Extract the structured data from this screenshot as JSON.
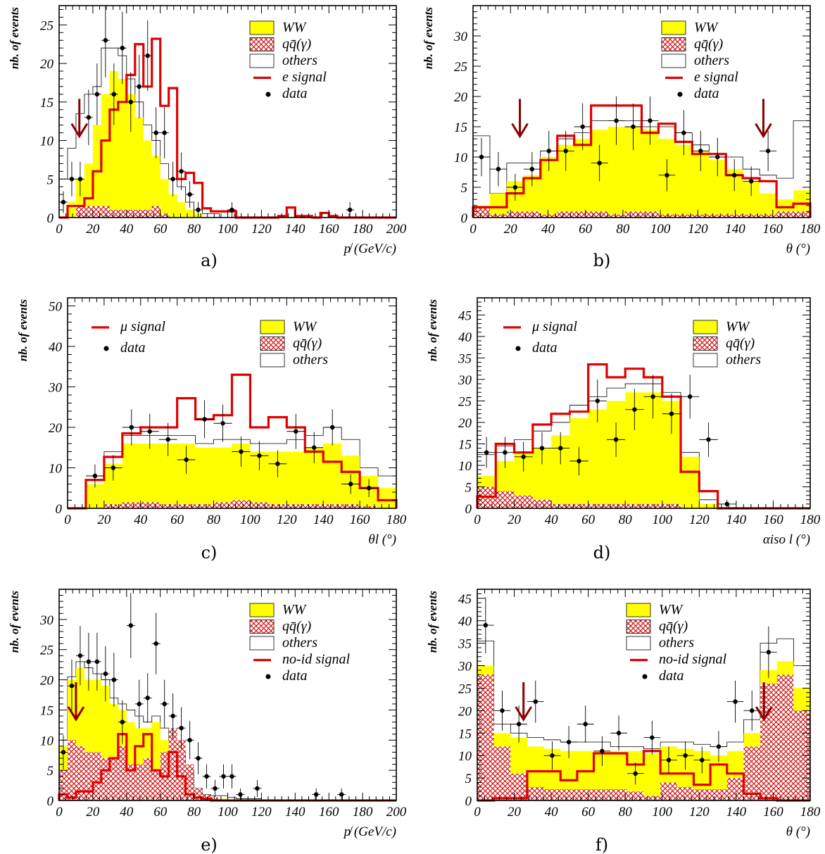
{
  "colors": {
    "ww": "#ffff00",
    "qq": "#cc0000",
    "others": "#ffffff",
    "signal": "#e00000",
    "arrow": "#8b0000",
    "data": "#000000"
  },
  "legend_labels": {
    "ww": "WW",
    "qq": "qq̄(γ)",
    "others": "others",
    "data": "data"
  },
  "ylabel": "nb. of events",
  "chart_data": [
    {
      "id": "a",
      "type": "bar",
      "panel_label": "a)",
      "xlabel": "p̸ (GeV/c)",
      "ylabel": "nb. of events",
      "xlim": [
        0,
        200
      ],
      "ylim": [
        0,
        27.5
      ],
      "xticks": [
        0,
        20,
        40,
        60,
        80,
        100,
        120,
        140,
        160,
        180,
        200
      ],
      "yticks": [
        0,
        5,
        10,
        15,
        20,
        25
      ],
      "signal_label": "e signal",
      "legend_pos": "top-right",
      "legend_order": [
        "ww",
        "qq",
        "others",
        "signal",
        "data"
      ],
      "binwidth": 5,
      "ww": [
        0,
        2,
        5,
        7,
        12,
        16,
        19,
        18,
        16,
        13,
        10,
        8,
        5,
        3,
        2,
        1,
        0.5,
        0,
        0,
        0,
        0,
        0,
        0,
        0,
        0,
        0,
        0,
        0,
        0,
        0,
        0,
        0,
        0,
        0,
        0,
        0,
        0,
        0,
        0,
        0
      ],
      "qq": [
        0,
        0,
        1.5,
        1.5,
        1.5,
        1.5,
        1,
        1,
        1,
        1,
        1,
        1.5,
        0.5,
        0,
        0,
        0,
        0,
        0,
        0,
        0,
        0,
        0,
        0,
        0,
        0,
        0,
        0,
        0,
        0,
        0,
        0,
        0,
        0,
        0,
        0,
        0,
        0,
        0,
        0,
        0
      ],
      "total": [
        5,
        9,
        13.5,
        16,
        17,
        22,
        22,
        21,
        18,
        15,
        12,
        10,
        7,
        5,
        4,
        2,
        1,
        0.5,
        0.5,
        0,
        0,
        0,
        0,
        0,
        0,
        0,
        0,
        0,
        0,
        0,
        0,
        0,
        0,
        0,
        0,
        0,
        0,
        0,
        0,
        0
      ],
      "signal": [
        0,
        1.5,
        1.5,
        2.5,
        6,
        10,
        14,
        15,
        18.5,
        22.5,
        17,
        23.2,
        14.5,
        16.8,
        5,
        5.8,
        4.5,
        1.2,
        0.8,
        0.8,
        0.8,
        0,
        0,
        0,
        0,
        0,
        0.2,
        1.3,
        0.2,
        0.2,
        0,
        0.6,
        0.2,
        0,
        0,
        0,
        0,
        0,
        0,
        0
      ],
      "data": [
        [
          2.5,
          2
        ],
        [
          7.5,
          5
        ],
        [
          12.5,
          5
        ],
        [
          17.5,
          13
        ],
        [
          22.5,
          16
        ],
        [
          27.5,
          23
        ],
        [
          32.5,
          16
        ],
        [
          37.5,
          22
        ],
        [
          42.5,
          15
        ],
        [
          47.5,
          17
        ],
        [
          52.5,
          21
        ],
        [
          57.5,
          11
        ],
        [
          62.5,
          11
        ],
        [
          67.5,
          5
        ],
        [
          72.5,
          6
        ],
        [
          77.5,
          3
        ],
        [
          82.5,
          1
        ],
        [
          102.5,
          1
        ],
        [
          172.5,
          1
        ]
      ],
      "arrows": [
        12
      ]
    },
    {
      "id": "b",
      "type": "bar",
      "panel_label": "b)",
      "xlabel": "θ (°)",
      "ylabel": "nb. of events",
      "xlim": [
        0,
        180
      ],
      "ylim": [
        0,
        35
      ],
      "xticks": [
        0,
        20,
        40,
        60,
        80,
        100,
        120,
        140,
        160,
        180
      ],
      "yticks": [
        0,
        5,
        10,
        15,
        20,
        25,
        30
      ],
      "signal_label": "e signal",
      "legend_pos": "top-right",
      "legend_order": [
        "ww",
        "qq",
        "others",
        "signal",
        "data"
      ],
      "binwidth": 9,
      "ww": [
        2,
        4,
        6,
        7,
        10,
        12,
        13,
        14.5,
        15,
        15,
        14.5,
        13,
        12,
        11,
        9.5,
        8,
        6,
        4,
        3,
        4.5
      ],
      "qq": [
        1.5,
        0.5,
        1,
        1,
        0.5,
        1,
        1,
        1,
        0.5,
        1,
        1,
        0.5,
        0.5,
        0.5,
        0.5,
        0.5,
        0.5,
        0.5,
        1,
        1
      ],
      "total": [
        13.5,
        4,
        9,
        9,
        11,
        13,
        14,
        16,
        16,
        16,
        15,
        15,
        14,
        12,
        10.5,
        10,
        8,
        7,
        6.5,
        16
      ],
      "signal": [
        1.7,
        1.7,
        4,
        6.5,
        9.5,
        13.5,
        12,
        18.5,
        18.5,
        18.5,
        14,
        15.5,
        12.5,
        10.5,
        10.5,
        7,
        6.5,
        6,
        1.7,
        2.3
      ],
      "data": [
        [
          4.5,
          10
        ],
        [
          13.5,
          8
        ],
        [
          22.5,
          5
        ],
        [
          31.5,
          8
        ],
        [
          40.5,
          11
        ],
        [
          49.5,
          11
        ],
        [
          58.5,
          15
        ],
        [
          67.5,
          9
        ],
        [
          76.5,
          16
        ],
        [
          85.5,
          15
        ],
        [
          94.5,
          16
        ],
        [
          103.5,
          7
        ],
        [
          112.5,
          14
        ],
        [
          121.5,
          11
        ],
        [
          130.5,
          10
        ],
        [
          139.5,
          7
        ],
        [
          148.5,
          6
        ],
        [
          157.5,
          11
        ]
      ],
      "arrows": [
        25,
        155
      ]
    },
    {
      "id": "c",
      "type": "bar",
      "panel_label": "c)",
      "xlabel": "θl (°)",
      "ylabel": "nb. of events",
      "xlim": [
        0,
        180
      ],
      "ylim": [
        0,
        52
      ],
      "xticks": [
        0,
        20,
        40,
        60,
        80,
        100,
        120,
        140,
        160,
        180
      ],
      "yticks": [
        0,
        10,
        20,
        30,
        40,
        50
      ],
      "signal_label": "μ signal",
      "legend_pos": "top-right",
      "legend_order": [
        "ww",
        "qq",
        "others"
      ],
      "legend_left_order": [
        "signal",
        "data"
      ],
      "binwidth": 10,
      "ww": [
        0,
        6,
        11,
        16,
        16,
        16,
        16,
        15,
        15,
        16,
        14,
        14,
        14,
        15,
        16,
        13,
        8,
        5
      ],
      "qq": [
        0,
        0,
        1,
        1.5,
        1.5,
        1,
        1,
        1,
        1.5,
        2,
        1.5,
        1,
        1,
        1,
        1,
        1,
        0.5,
        0
      ],
      "total": [
        0,
        7,
        14,
        18,
        18,
        18,
        18,
        16,
        17,
        17,
        16,
        16,
        17,
        18,
        20,
        17,
        10,
        8
      ],
      "signal": [
        0,
        7,
        12.7,
        18.5,
        20,
        20,
        27.2,
        22,
        23,
        33,
        20,
        22.5,
        20,
        14,
        11.5,
        9,
        5,
        2
      ],
      "data": [
        [
          15,
          8
        ],
        [
          25,
          10
        ],
        [
          35,
          20
        ],
        [
          45,
          19
        ],
        [
          55,
          17
        ],
        [
          65,
          12
        ],
        [
          75,
          22
        ],
        [
          85,
          21
        ],
        [
          95,
          14
        ],
        [
          105,
          13
        ],
        [
          115,
          11
        ],
        [
          125,
          19
        ],
        [
          135,
          15
        ],
        [
          145,
          20
        ],
        [
          155,
          6
        ],
        [
          165,
          5
        ]
      ],
      "arrows": []
    },
    {
      "id": "d",
      "type": "bar",
      "panel_label": "d)",
      "xlabel": "αiso l (°)",
      "ylabel": "nb. of events",
      "xlim": [
        0,
        180
      ],
      "ylim": [
        0,
        49
      ],
      "xticks": [
        0,
        20,
        40,
        60,
        80,
        100,
        120,
        140,
        160,
        180
      ],
      "yticks": [
        0,
        5,
        10,
        15,
        20,
        25,
        30,
        35,
        40,
        45
      ],
      "signal_label": "μ signal",
      "legend_pos": "top-right",
      "legend_order": [
        "ww",
        "qq",
        "others"
      ],
      "legend_left_order": [
        "signal",
        "data"
      ],
      "binwidth": 10,
      "ww": [
        7.5,
        11,
        13,
        14,
        17,
        21,
        23,
        25,
        27,
        27,
        25,
        12,
        1,
        0,
        0,
        0,
        0,
        0
      ],
      "qq": [
        5,
        4,
        3,
        2,
        1,
        1,
        1,
        1,
        1,
        1,
        1,
        0,
        0,
        0,
        0,
        0,
        0,
        0
      ],
      "total": [
        12.5,
        14.5,
        16,
        18,
        20,
        24,
        26,
        28,
        29,
        29,
        27,
        13,
        2,
        0,
        0,
        0,
        0,
        0
      ],
      "signal": [
        2.7,
        15,
        13,
        19.5,
        22,
        22.5,
        33.5,
        30.5,
        32.5,
        30.5,
        26,
        8.5,
        4,
        0,
        0,
        0,
        0,
        0
      ],
      "data": [
        [
          5,
          13
        ],
        [
          15,
          13
        ],
        [
          25,
          12
        ],
        [
          35,
          14
        ],
        [
          45,
          14
        ],
        [
          55,
          11
        ],
        [
          65,
          25
        ],
        [
          75,
          16
        ],
        [
          85,
          23
        ],
        [
          95,
          26
        ],
        [
          105,
          22
        ],
        [
          115,
          26
        ],
        [
          125,
          16
        ],
        [
          135,
          1
        ]
      ],
      "arrows": []
    },
    {
      "id": "e",
      "type": "bar",
      "panel_label": "e)",
      "xlabel": "p̸ (GeV/c)",
      "ylabel": "nb. of events",
      "xlim": [
        0,
        200
      ],
      "ylim": [
        0,
        35
      ],
      "xticks": [
        0,
        20,
        40,
        60,
        80,
        100,
        120,
        140,
        160,
        180,
        200
      ],
      "yticks": [
        0,
        5,
        10,
        15,
        20,
        25,
        30
      ],
      "signal_label": "no-id signal",
      "legend_pos": "top-right",
      "legend_order": [
        "ww",
        "qq",
        "others",
        "signal",
        "data"
      ],
      "binwidth": 5,
      "ww": [
        9,
        20,
        22,
        20,
        20,
        19,
        16,
        15,
        13,
        12,
        12,
        13,
        10,
        8,
        4,
        2,
        1,
        0.5,
        0.3,
        0.3,
        0.2,
        0.1,
        0.2,
        0.2,
        0,
        0,
        0,
        0,
        0,
        0,
        0,
        0,
        0,
        0,
        0,
        0,
        0,
        0,
        0,
        0
      ],
      "qq": [
        5,
        10,
        9,
        8,
        8,
        7,
        7,
        9,
        6,
        6,
        7,
        5,
        8,
        12,
        10,
        6,
        2,
        1,
        0.5,
        0,
        0,
        0,
        0,
        0,
        0,
        0,
        0,
        0,
        0,
        0,
        0,
        0,
        0,
        0,
        0,
        0,
        0,
        0,
        0,
        0
      ],
      "total": [
        10,
        20.5,
        23,
        22,
        21,
        20,
        17,
        16,
        15,
        14,
        13,
        14,
        12,
        10,
        8,
        5,
        2,
        1,
        0.8,
        0.8,
        0.5,
        0.3,
        0.3,
        0.3,
        0,
        0,
        0,
        0,
        0,
        0,
        0,
        0,
        0,
        0,
        0,
        0,
        0,
        0,
        0,
        0
      ],
      "signal": [
        1,
        0.5,
        1.5,
        1.5,
        3,
        5,
        7,
        11,
        5,
        9,
        11,
        5,
        4,
        8,
        4,
        1,
        0.5,
        0.3,
        0,
        0,
        0,
        0,
        0,
        0,
        0,
        0,
        0,
        0,
        0,
        0,
        0,
        0,
        0,
        0,
        0,
        0,
        0,
        0,
        0,
        0
      ],
      "data": [
        [
          2.5,
          8
        ],
        [
          7.5,
          19
        ],
        [
          12.5,
          24
        ],
        [
          17.5,
          23
        ],
        [
          22.5,
          23
        ],
        [
          27.5,
          21
        ],
        [
          32.5,
          20
        ],
        [
          37.5,
          13
        ],
        [
          42.5,
          29
        ],
        [
          47.5,
          16
        ],
        [
          52.5,
          17
        ],
        [
          57.5,
          26
        ],
        [
          62.5,
          16
        ],
        [
          67.5,
          14
        ],
        [
          72.5,
          12
        ],
        [
          77.5,
          10
        ],
        [
          82.5,
          7
        ],
        [
          87.5,
          4
        ],
        [
          92.5,
          2
        ],
        [
          97.5,
          4
        ],
        [
          102.5,
          4
        ],
        [
          107.5,
          1
        ],
        [
          117.5,
          2
        ],
        [
          152.5,
          1
        ],
        [
          167.5,
          1
        ]
      ],
      "arrows": [
        10
      ]
    },
    {
      "id": "f",
      "type": "bar",
      "panel_label": "f)",
      "xlabel": "θ (°)",
      "ylabel": "nb. of events",
      "xlim": [
        0,
        180
      ],
      "ylim": [
        0,
        47
      ],
      "xticks": [
        0,
        20,
        40,
        60,
        80,
        100,
        120,
        140,
        160,
        180
      ],
      "yticks": [
        0,
        5,
        10,
        15,
        20,
        25,
        30,
        35,
        40,
        45
      ],
      "signal_label": "no-id signal",
      "legend_pos": "top-right",
      "legend_order": [
        "ww",
        "qq",
        "others",
        "signal",
        "data"
      ],
      "binwidth": 9,
      "ww": [
        30,
        15,
        14,
        12,
        11.5,
        11,
        11,
        11,
        11,
        11,
        10.5,
        12,
        11.5,
        11,
        10,
        11,
        15,
        29,
        31,
        25
      ],
      "qq": [
        28,
        12,
        6,
        3,
        2.5,
        2.5,
        2.5,
        2.5,
        2.5,
        2,
        1,
        4,
        3,
        2.5,
        2.5,
        5,
        12,
        26,
        28,
        20
      ],
      "total": [
        35.5,
        17,
        15,
        14,
        13.5,
        13,
        13,
        13,
        12,
        12,
        11.5,
        13,
        13,
        12.5,
        12,
        13,
        18,
        35,
        36,
        30
      ],
      "signal": [
        0,
        0.5,
        0.5,
        6.5,
        6.5,
        4.5,
        6.5,
        10.5,
        10.5,
        8,
        11,
        6,
        6,
        3.5,
        8,
        6,
        1.5,
        0.5,
        0,
        0
      ],
      "data": [
        [
          4.5,
          39
        ],
        [
          13.5,
          20
        ],
        [
          22.5,
          17
        ],
        [
          31.5,
          22
        ],
        [
          40.5,
          10
        ],
        [
          49.5,
          13
        ],
        [
          58.5,
          17
        ],
        [
          67.5,
          11
        ],
        [
          76.5,
          15
        ],
        [
          85.5,
          6
        ],
        [
          94.5,
          14
        ],
        [
          103.5,
          9
        ],
        [
          112.5,
          10
        ],
        [
          121.5,
          9
        ],
        [
          130.5,
          12
        ],
        [
          139.5,
          22
        ],
        [
          148.5,
          20
        ],
        [
          157.5,
          33
        ]
      ],
      "arrows": [
        25,
        155
      ]
    }
  ]
}
